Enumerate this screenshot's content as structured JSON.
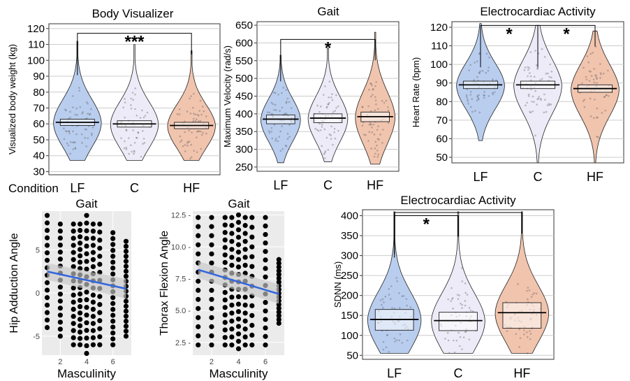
{
  "chart_data": [
    {
      "id": "body_visualizer",
      "type": "violin",
      "title": "Body Visualizer",
      "ylabel": "Visualized body weight (kg)",
      "row_label": "Condition",
      "categories": [
        "LF",
        "C",
        "HF"
      ],
      "yticks": [
        30,
        40,
        50,
        60,
        70,
        80,
        90,
        100,
        110,
        120
      ],
      "ylim": [
        28,
        123
      ],
      "colors": [
        "#b9cdee",
        "#ecebf7",
        "#f1c4ae"
      ],
      "medians": [
        61,
        60,
        59
      ],
      "box": [
        [
          59,
          63
        ],
        [
          58,
          62
        ],
        [
          57,
          61
        ]
      ],
      "ranges": [
        [
          37,
          112
        ],
        [
          37,
          110
        ],
        [
          37,
          106
        ]
      ],
      "significance": [
        {
          "from": "LF",
          "to": "HF",
          "label": "***",
          "y": 117
        }
      ]
    },
    {
      "id": "gait_velocity",
      "type": "violin",
      "title": "Gait",
      "ylabel": "Maximum Velocity  (rad/s)",
      "categories": [
        "LF",
        "C",
        "HF"
      ],
      "yticks": [
        250,
        300,
        350,
        400,
        450,
        500,
        550,
        600,
        650
      ],
      "ylim": [
        238,
        660
      ],
      "colors": [
        "#b9cdee",
        "#ecebf7",
        "#f1c4ae"
      ],
      "medians": [
        385,
        388,
        392
      ],
      "box": [
        [
          372,
          397
        ],
        [
          375,
          400
        ],
        [
          378,
          405
        ]
      ],
      "ranges": [
        [
          262,
          565
        ],
        [
          265,
          585
        ],
        [
          258,
          630
        ]
      ],
      "significance": [
        {
          "from": "LF",
          "to": "HF",
          "label": "*",
          "y": 610
        }
      ]
    },
    {
      "id": "heart_rate",
      "type": "violin",
      "title": "Electrocardiac Activity",
      "ylabel": "Heart Rate (bpm)",
      "categories": [
        "LF",
        "C",
        "HF"
      ],
      "yticks": [
        50,
        60,
        70,
        80,
        90,
        100,
        110,
        120
      ],
      "ylim": [
        47,
        123
      ],
      "colors": [
        "#b9cdee",
        "#ecebf7",
        "#f1c4ae"
      ],
      "medians": [
        89,
        89,
        87
      ],
      "box": [
        [
          87,
          91
        ],
        [
          87,
          91
        ],
        [
          85,
          89
        ]
      ],
      "ranges": [
        [
          59,
          122
        ],
        [
          47,
          121
        ],
        [
          47,
          118
        ]
      ],
      "significance": [
        {
          "from": "LF",
          "to": "C",
          "label": "*",
          "y": 121
        },
        {
          "from": "C",
          "to": "HF",
          "label": "*",
          "y": 121
        }
      ]
    },
    {
      "id": "hip_adduction",
      "type": "scatter",
      "title": "Gait",
      "xlabel": "Masculinity",
      "ylabel": "Hip Adduction Angle",
      "xticks": [
        2,
        4,
        6
      ],
      "yticks": [
        -5,
        0,
        5
      ],
      "xlim": [
        0.6,
        7.4
      ],
      "ylim": [
        -7.2,
        9.5
      ],
      "x_values": [
        1,
        2,
        3,
        3.5,
        4,
        4.5,
        5,
        6,
        7
      ],
      "y_ranges": [
        [
          -4,
          9
        ],
        [
          -5,
          8
        ],
        [
          -6,
          8
        ],
        [
          -6,
          8
        ],
        [
          -7,
          9
        ],
        [
          -6,
          8
        ],
        [
          -6,
          8
        ],
        [
          -6,
          7
        ],
        [
          -5,
          6
        ]
      ],
      "fit": {
        "x": [
          1,
          7
        ],
        "y": [
          2.5,
          0.5
        ]
      },
      "colors": {
        "points": "#000000",
        "fit": "#3366dd",
        "band": "#c7c7c7",
        "panel": "#ebebeb"
      }
    },
    {
      "id": "thorax_flexion",
      "type": "scatter",
      "title": "Gait",
      "xlabel": "Masculinity",
      "ylabel": "Thorax Flexion Angle",
      "xticks": [
        2,
        4,
        6
      ],
      "yticks": [
        2.5,
        5.0,
        7.5,
        10.0,
        12.5
      ],
      "ytick_labels": [
        "2.5 -",
        "5.0 -",
        "7.5 -",
        "10.0 -",
        "12.5 -"
      ],
      "xlim": [
        0.6,
        7.4
      ],
      "ylim": [
        1.5,
        12.8
      ],
      "x_values": [
        1,
        2,
        3,
        3.5,
        4,
        4.5,
        5,
        6,
        7
      ],
      "y_ranges": [
        [
          2.3,
          12.3
        ],
        [
          2.3,
          12.3
        ],
        [
          2.3,
          12.3
        ],
        [
          2.3,
          12.3
        ],
        [
          2.0,
          12.5
        ],
        [
          2.3,
          12.3
        ],
        [
          2.3,
          12.3
        ],
        [
          2.3,
          12.3
        ],
        [
          4.0,
          9.0
        ]
      ],
      "fit": {
        "x": [
          1,
          7
        ],
        "y": [
          8.2,
          6.3
        ]
      },
      "colors": {
        "points": "#000000",
        "fit": "#3366dd",
        "band": "#c7c7c7",
        "panel": "#ebebeb"
      }
    },
    {
      "id": "sdnn",
      "type": "violin",
      "title": "Electrocardiac Activity",
      "ylabel": "SDNN (ms)",
      "categories": [
        "LF",
        "C",
        "HF"
      ],
      "yticks": [
        50,
        100,
        150,
        200,
        250,
        300,
        350,
        400
      ],
      "ylim": [
        40,
        415
      ],
      "colors": [
        "#b9cdee",
        "#ecebf7",
        "#f1c4ae"
      ],
      "medians": [
        140,
        137,
        157
      ],
      "box": [
        [
          113,
          165
        ],
        [
          112,
          158
        ],
        [
          118,
          182
        ]
      ],
      "ranges": [
        [
          55,
          410
        ],
        [
          55,
          410
        ],
        [
          55,
          410
        ]
      ],
      "significance": [
        {
          "from": "LF",
          "to": "HF",
          "label": "",
          "y": 408
        },
        {
          "from": "LF",
          "to": "C",
          "label": "*",
          "y": 400
        }
      ]
    }
  ]
}
